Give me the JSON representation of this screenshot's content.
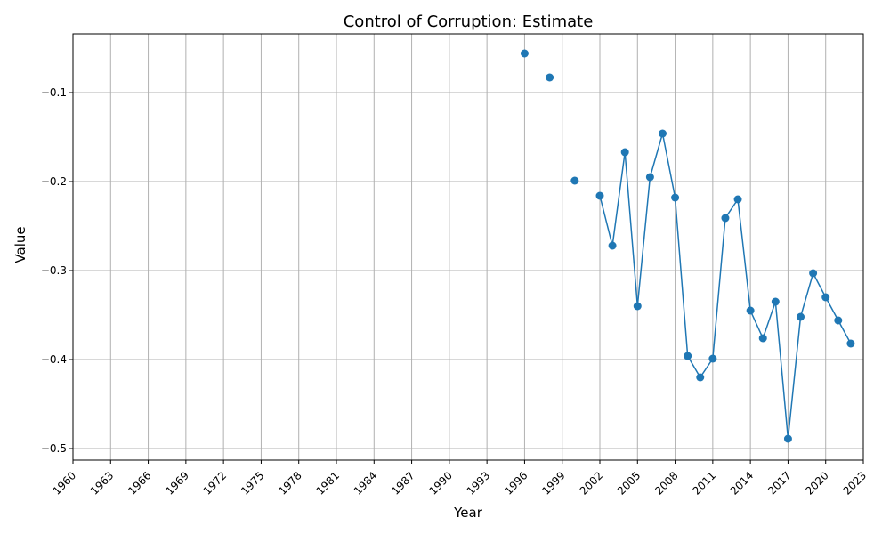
{
  "chart_data": {
    "type": "line",
    "title": "Control of Corruption: Estimate",
    "xlabel": "Year",
    "ylabel": "Value",
    "xlim": [
      1960,
      2023
    ],
    "ylim": [
      -0.513,
      -0.034
    ],
    "xticks": [
      1960,
      1963,
      1966,
      1969,
      1972,
      1975,
      1978,
      1981,
      1984,
      1987,
      1990,
      1993,
      1996,
      1999,
      2002,
      2005,
      2008,
      2011,
      2014,
      2017,
      2020,
      2023
    ],
    "yticks": [
      -0.5,
      -0.4,
      -0.3,
      -0.2,
      -0.1
    ],
    "ytick_labels": [
      "−0.5",
      "−0.4",
      "−0.3",
      "−0.2",
      "−0.1"
    ],
    "grid": true,
    "colors": {
      "series": "#1f77b4",
      "grid": "#b0b0b0",
      "axis": "#000000"
    },
    "series": [
      {
        "x": [
          1996,
          1998,
          2000,
          2002,
          2003,
          2004,
          2005,
          2006,
          2007,
          2008,
          2009,
          2010,
          2011,
          2012,
          2013,
          2014,
          2015,
          2016,
          2017,
          2018,
          2019,
          2020,
          2021,
          2022
        ],
        "y": [
          -0.056,
          -0.083,
          -0.199,
          -0.216,
          -0.272,
          -0.167,
          -0.34,
          -0.195,
          -0.146,
          -0.218,
          -0.396,
          -0.42,
          -0.399,
          -0.241,
          -0.22,
          -0.345,
          -0.376,
          -0.335,
          -0.489,
          -0.352,
          -0.303,
          -0.33,
          -0.356,
          -0.382
        ]
      }
    ]
  }
}
